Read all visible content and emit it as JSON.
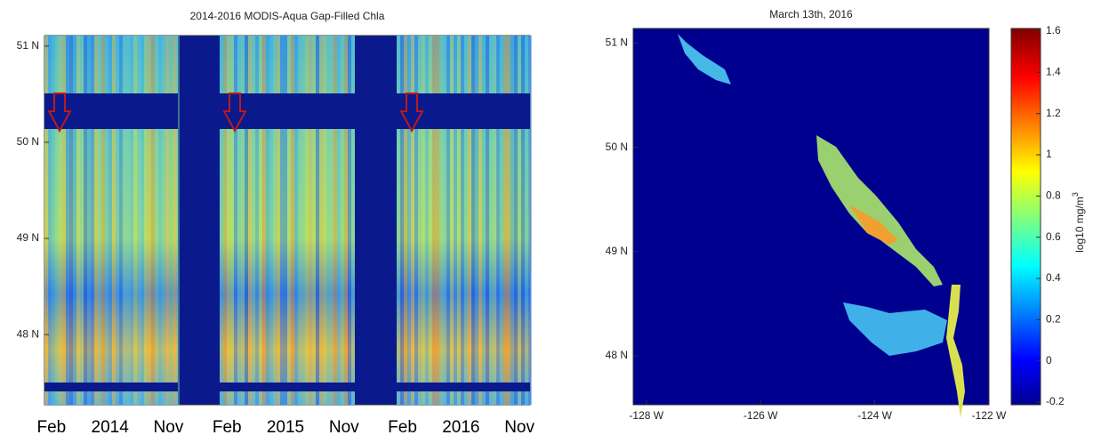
{
  "chart_data": [
    {
      "type": "heatmap",
      "title": "2014-2016 MODIS-Aqua Gap-Filled Chla",
      "categories": [
        "Feb",
        "2014",
        "Nov",
        "Feb",
        "2015",
        "Nov",
        "Feb",
        "2016",
        "Nov"
      ],
      "ylim": [
        47.27,
        51.11
      ],
      "yticks": [
        {
          "value": 51,
          "label": "51 N"
        },
        {
          "value": 50,
          "label": "50 N"
        },
        {
          "value": 49,
          "label": "49 N"
        },
        {
          "value": 48,
          "label": "48 N"
        }
      ]
    },
    {
      "type": "map",
      "title": "March 13th, 2016",
      "xlim": [
        -128.23,
        -122
      ],
      "ylim": [
        47.53,
        51.14
      ],
      "xticks": [
        {
          "value": -128,
          "label": "-128 W"
        },
        {
          "value": -126,
          "label": "-126 W"
        },
        {
          "value": -124,
          "label": "-124 W"
        },
        {
          "value": -122,
          "label": "-122 W"
        }
      ],
      "yticks": [
        {
          "value": 51,
          "label": "51 N"
        },
        {
          "value": 50,
          "label": "50 N"
        },
        {
          "value": 49,
          "label": "49 N"
        },
        {
          "value": 48,
          "label": "48 N"
        }
      ],
      "colorbar": {
        "label": "log10 mg/m",
        "label_sup": "3",
        "ylim": [
          -0.213,
          1.613
        ],
        "yticks": [
          1.6,
          1.4,
          1.2,
          1,
          0.8,
          0.6,
          0.4,
          0.2,
          0,
          -0.2
        ]
      }
    }
  ]
}
